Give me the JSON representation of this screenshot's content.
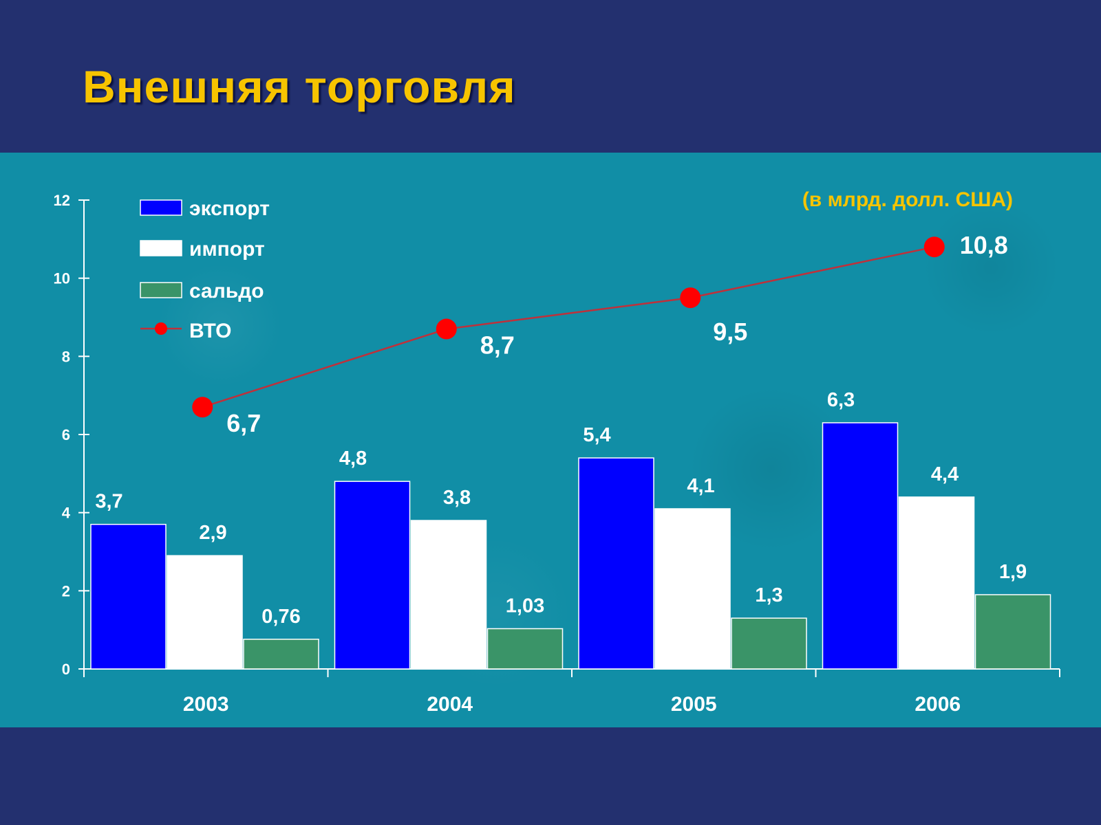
{
  "title": "Внешняя торговля",
  "unit_note": "(в млрд. долл. США)",
  "colors": {
    "background": "#23306f",
    "panel": "#118ea6",
    "title": "#f7c400",
    "export": "#0000ff",
    "import": "#ffffff",
    "saldo": "#3a9468",
    "wto": "#ff0000",
    "wto_line": "#c0303a"
  },
  "chart_data": {
    "type": "bar",
    "categories": [
      "2003",
      "2004",
      "2005",
      "2006"
    ],
    "series": [
      {
        "name": "экспорт",
        "type": "bar",
        "values": [
          3.7,
          4.8,
          5.4,
          6.3
        ],
        "labels": [
          "3,7",
          "4,8",
          "5,4",
          "6,3"
        ]
      },
      {
        "name": "импорт",
        "type": "bar",
        "values": [
          2.9,
          3.8,
          4.1,
          4.4
        ],
        "labels": [
          "2,9",
          "3,8",
          "4,1",
          "4,4"
        ]
      },
      {
        "name": "сальдо",
        "type": "bar",
        "values": [
          0.76,
          1.03,
          1.3,
          1.9
        ],
        "labels": [
          "0,76",
          "1,03",
          "1,3",
          "1,9"
        ]
      },
      {
        "name": "ВТО",
        "type": "line",
        "values": [
          6.7,
          8.7,
          9.5,
          10.8
        ],
        "labels": [
          "6,7",
          "8,7",
          "9,5",
          "10,8"
        ]
      }
    ],
    "ylim": [
      0,
      12
    ],
    "yticks": [
      0,
      2,
      4,
      6,
      8,
      10,
      12
    ],
    "grid": false,
    "legend_position": "top-left"
  }
}
